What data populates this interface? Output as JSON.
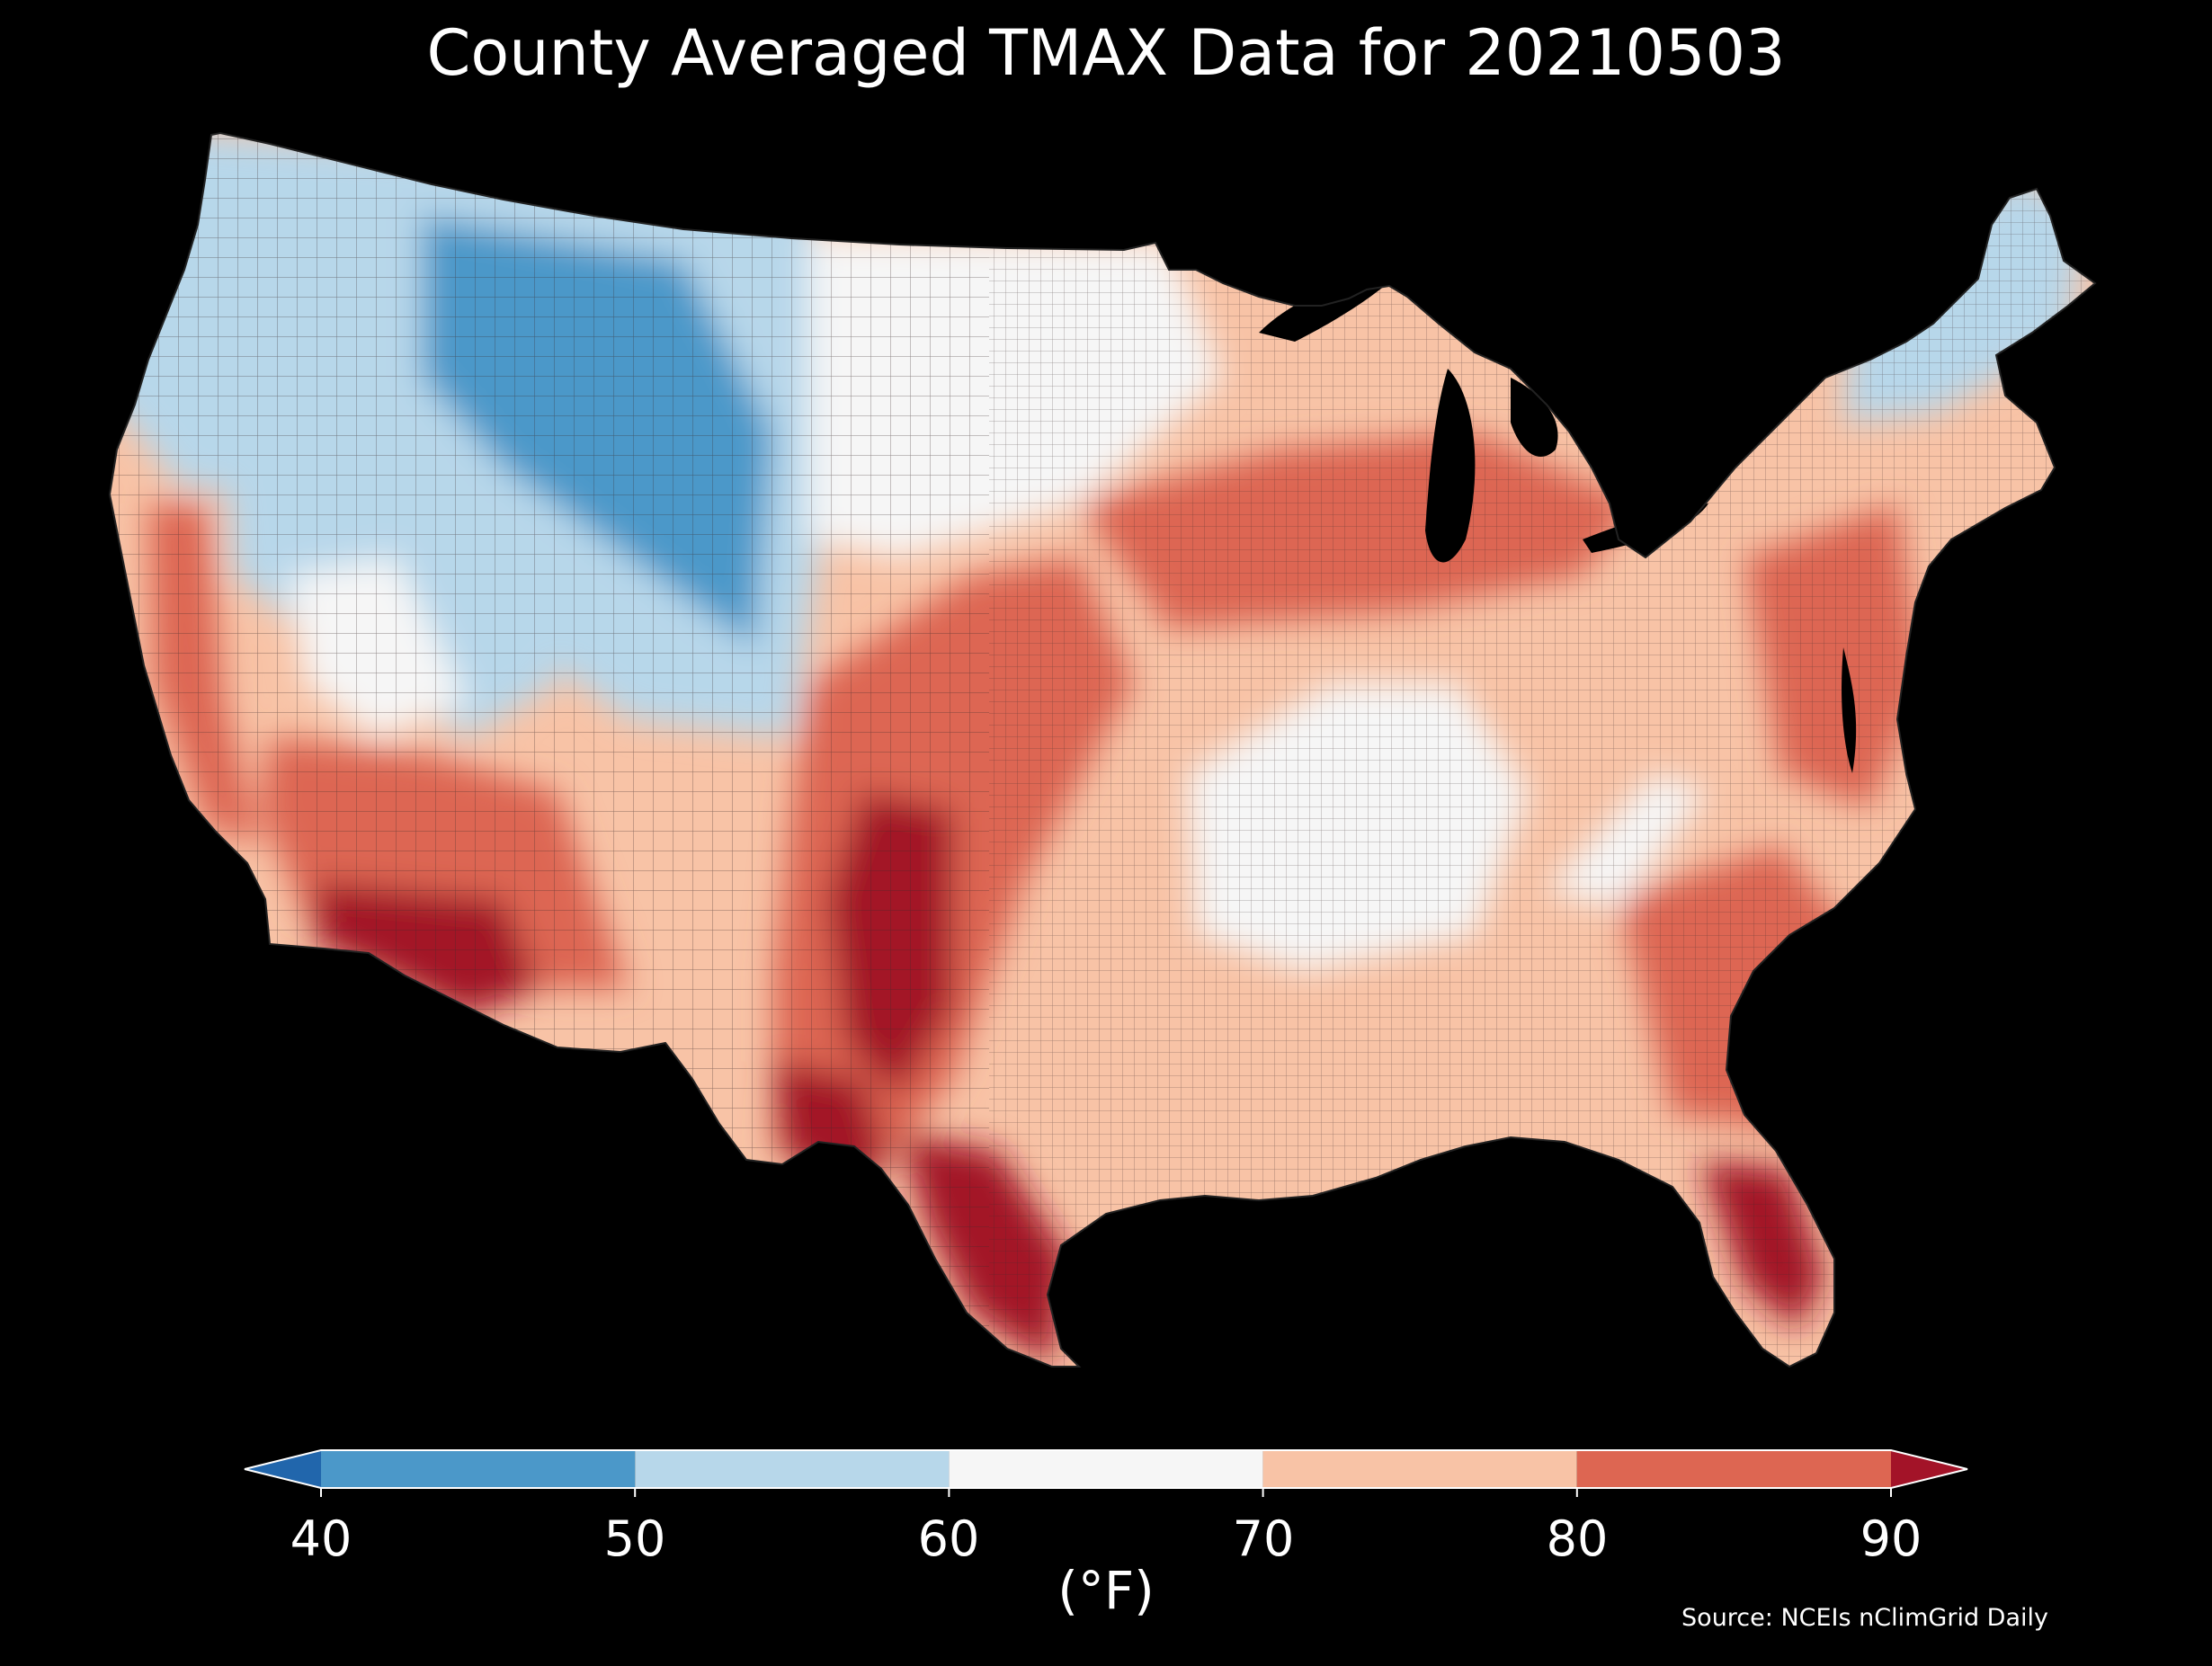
{
  "title": "County Averaged TMAX Data for 20210503",
  "colorbar": {
    "units_label": "(°F)",
    "ticks": [
      "40",
      "50",
      "60",
      "70",
      "80",
      "90"
    ],
    "bins": [
      {
        "range": "<40",
        "color": "#2166ac"
      },
      {
        "range": "40-50",
        "color": "#4b98c9"
      },
      {
        "range": "50-60",
        "color": "#b7d7ea"
      },
      {
        "range": "60-70",
        "color": "#f6f6f6"
      },
      {
        "range": "70-80",
        "color": "#f8c3a6"
      },
      {
        "range": "80-90",
        "color": "#dd6652"
      },
      {
        "range": ">90",
        "color": "#a31328"
      }
    ]
  },
  "source": "Source: NCEIs nClimGrid Daily",
  "map_regions": [
    {
      "name": "pacific-northwest",
      "bin": "50-60"
    },
    {
      "name": "northern-rockies",
      "bin": "40-50"
    },
    {
      "name": "great-basin",
      "bin": "50-60"
    },
    {
      "name": "northern-plains",
      "bin": "60-70"
    },
    {
      "name": "california-central-valley",
      "bin": "80-90"
    },
    {
      "name": "desert-southwest",
      "bin": ">90"
    },
    {
      "name": "southern-plains-corridor",
      "bin": "80-90"
    },
    {
      "name": "south-texas",
      "bin": ">90"
    },
    {
      "name": "midwest-lake-region",
      "bin": "80-90"
    },
    {
      "name": "ohio-valley",
      "bin": "60-70"
    },
    {
      "name": "appalachian-ridge",
      "bin": "60-70"
    },
    {
      "name": "southeast",
      "bin": "70-80"
    },
    {
      "name": "mid-atlantic",
      "bin": "80-90"
    },
    {
      "name": "florida-peninsula",
      "bin": ">90"
    },
    {
      "name": "new-england",
      "bin": "50-60"
    }
  ]
}
